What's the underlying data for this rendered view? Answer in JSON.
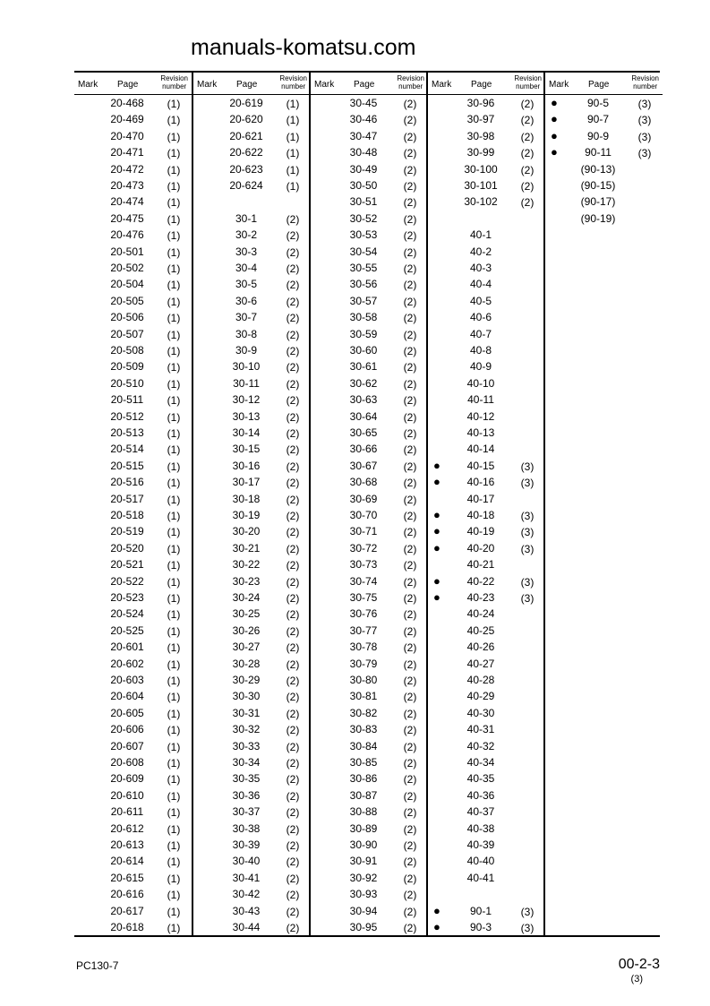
{
  "header": {
    "mark": "Mark",
    "page": "Page",
    "revision_line1": "Revision",
    "revision_line2": "number"
  },
  "columns": [
    [
      [
        "",
        "20-468",
        "(1)"
      ],
      [
        "",
        "20-469",
        "(1)"
      ],
      [
        "",
        "20-470",
        "(1)"
      ],
      [
        "",
        "20-471",
        "(1)"
      ],
      [
        "",
        "20-472",
        "(1)"
      ],
      [
        "",
        "20-473",
        "(1)"
      ],
      [
        "",
        "20-474",
        "(1)"
      ],
      [
        "",
        "20-475",
        "(1)"
      ],
      [
        "",
        "20-476",
        "(1)"
      ],
      [
        "",
        "20-501",
        "(1)"
      ],
      [
        "",
        "20-502",
        "(1)"
      ],
      [
        "",
        "20-504",
        "(1)"
      ],
      [
        "",
        "20-505",
        "(1)"
      ],
      [
        "",
        "20-506",
        "(1)"
      ],
      [
        "",
        "20-507",
        "(1)"
      ],
      [
        "",
        "20-508",
        "(1)"
      ],
      [
        "",
        "20-509",
        "(1)"
      ],
      [
        "",
        "20-510",
        "(1)"
      ],
      [
        "",
        "20-511",
        "(1)"
      ],
      [
        "",
        "20-512",
        "(1)"
      ],
      [
        "",
        "20-513",
        "(1)"
      ],
      [
        "",
        "20-514",
        "(1)"
      ],
      [
        "",
        "20-515",
        "(1)"
      ],
      [
        "",
        "20-516",
        "(1)"
      ],
      [
        "",
        "20-517",
        "(1)"
      ],
      [
        "",
        "20-518",
        "(1)"
      ],
      [
        "",
        "20-519",
        "(1)"
      ],
      [
        "",
        "20-520",
        "(1)"
      ],
      [
        "",
        "20-521",
        "(1)"
      ],
      [
        "",
        "20-522",
        "(1)"
      ],
      [
        "",
        "20-523",
        "(1)"
      ],
      [
        "",
        "20-524",
        "(1)"
      ],
      [
        "",
        "20-525",
        "(1)"
      ],
      [
        "",
        "20-601",
        "(1)"
      ],
      [
        "",
        "20-602",
        "(1)"
      ],
      [
        "",
        "20-603",
        "(1)"
      ],
      [
        "",
        "20-604",
        "(1)"
      ],
      [
        "",
        "20-605",
        "(1)"
      ],
      [
        "",
        "20-606",
        "(1)"
      ],
      [
        "",
        "20-607",
        "(1)"
      ],
      [
        "",
        "20-608",
        "(1)"
      ],
      [
        "",
        "20-609",
        "(1)"
      ],
      [
        "",
        "20-610",
        "(1)"
      ],
      [
        "",
        "20-611",
        "(1)"
      ],
      [
        "",
        "20-612",
        "(1)"
      ],
      [
        "",
        "20-613",
        "(1)"
      ],
      [
        "",
        "20-614",
        "(1)"
      ],
      [
        "",
        "20-615",
        "(1)"
      ],
      [
        "",
        "20-616",
        "(1)"
      ],
      [
        "",
        "20-617",
        "(1)"
      ],
      [
        "",
        "20-618",
        "(1)"
      ]
    ],
    [
      [
        "",
        "20-619",
        "(1)"
      ],
      [
        "",
        "20-620",
        "(1)"
      ],
      [
        "",
        "20-621",
        "(1)"
      ],
      [
        "",
        "20-622",
        "(1)"
      ],
      [
        "",
        "20-623",
        "(1)"
      ],
      [
        "",
        "20-624",
        "(1)"
      ],
      [
        "",
        "",
        ""
      ],
      [
        "",
        "30-1",
        "(2)"
      ],
      [
        "",
        "30-2",
        "(2)"
      ],
      [
        "",
        "30-3",
        "(2)"
      ],
      [
        "",
        "30-4",
        "(2)"
      ],
      [
        "",
        "30-5",
        "(2)"
      ],
      [
        "",
        "30-6",
        "(2)"
      ],
      [
        "",
        "30-7",
        "(2)"
      ],
      [
        "",
        "30-8",
        "(2)"
      ],
      [
        "",
        "30-9",
        "(2)"
      ],
      [
        "",
        "30-10",
        "(2)"
      ],
      [
        "",
        "30-11",
        "(2)"
      ],
      [
        "",
        "30-12",
        "(2)"
      ],
      [
        "",
        "30-13",
        "(2)"
      ],
      [
        "",
        "30-14",
        "(2)"
      ],
      [
        "",
        "30-15",
        "(2)"
      ],
      [
        "",
        "30-16",
        "(2)"
      ],
      [
        "",
        "30-17",
        "(2)"
      ],
      [
        "",
        "30-18",
        "(2)"
      ],
      [
        "",
        "30-19",
        "(2)"
      ],
      [
        "",
        "30-20",
        "(2)"
      ],
      [
        "",
        "30-21",
        "(2)"
      ],
      [
        "",
        "30-22",
        "(2)"
      ],
      [
        "",
        "30-23",
        "(2)"
      ],
      [
        "",
        "30-24",
        "(2)"
      ],
      [
        "",
        "30-25",
        "(2)"
      ],
      [
        "",
        "30-26",
        "(2)"
      ],
      [
        "",
        "30-27",
        "(2)"
      ],
      [
        "",
        "30-28",
        "(2)"
      ],
      [
        "",
        "30-29",
        "(2)"
      ],
      [
        "",
        "30-30",
        "(2)"
      ],
      [
        "",
        "30-31",
        "(2)"
      ],
      [
        "",
        "30-32",
        "(2)"
      ],
      [
        "",
        "30-33",
        "(2)"
      ],
      [
        "",
        "30-34",
        "(2)"
      ],
      [
        "",
        "30-35",
        "(2)"
      ],
      [
        "",
        "30-36",
        "(2)"
      ],
      [
        "",
        "30-37",
        "(2)"
      ],
      [
        "",
        "30-38",
        "(2)"
      ],
      [
        "",
        "30-39",
        "(2)"
      ],
      [
        "",
        "30-40",
        "(2)"
      ],
      [
        "",
        "30-41",
        "(2)"
      ],
      [
        "",
        "30-42",
        "(2)"
      ],
      [
        "",
        "30-43",
        "(2)"
      ],
      [
        "",
        "30-44",
        "(2)"
      ]
    ],
    [
      [
        "",
        "30-45",
        "(2)"
      ],
      [
        "",
        "30-46",
        "(2)"
      ],
      [
        "",
        "30-47",
        "(2)"
      ],
      [
        "",
        "30-48",
        "(2)"
      ],
      [
        "",
        "30-49",
        "(2)"
      ],
      [
        "",
        "30-50",
        "(2)"
      ],
      [
        "",
        "30-51",
        "(2)"
      ],
      [
        "",
        "30-52",
        "(2)"
      ],
      [
        "",
        "30-53",
        "(2)"
      ],
      [
        "",
        "30-54",
        "(2)"
      ],
      [
        "",
        "30-55",
        "(2)"
      ],
      [
        "",
        "30-56",
        "(2)"
      ],
      [
        "",
        "30-57",
        "(2)"
      ],
      [
        "",
        "30-58",
        "(2)"
      ],
      [
        "",
        "30-59",
        "(2)"
      ],
      [
        "",
        "30-60",
        "(2)"
      ],
      [
        "",
        "30-61",
        "(2)"
      ],
      [
        "",
        "30-62",
        "(2)"
      ],
      [
        "",
        "30-63",
        "(2)"
      ],
      [
        "",
        "30-64",
        "(2)"
      ],
      [
        "",
        "30-65",
        "(2)"
      ],
      [
        "",
        "30-66",
        "(2)"
      ],
      [
        "",
        "30-67",
        "(2)"
      ],
      [
        "",
        "30-68",
        "(2)"
      ],
      [
        "",
        "30-69",
        "(2)"
      ],
      [
        "",
        "30-70",
        "(2)"
      ],
      [
        "",
        "30-71",
        "(2)"
      ],
      [
        "",
        "30-72",
        "(2)"
      ],
      [
        "",
        "30-73",
        "(2)"
      ],
      [
        "",
        "30-74",
        "(2)"
      ],
      [
        "",
        "30-75",
        "(2)"
      ],
      [
        "",
        "30-76",
        "(2)"
      ],
      [
        "",
        "30-77",
        "(2)"
      ],
      [
        "",
        "30-78",
        "(2)"
      ],
      [
        "",
        "30-79",
        "(2)"
      ],
      [
        "",
        "30-80",
        "(2)"
      ],
      [
        "",
        "30-81",
        "(2)"
      ],
      [
        "",
        "30-82",
        "(2)"
      ],
      [
        "",
        "30-83",
        "(2)"
      ],
      [
        "",
        "30-84",
        "(2)"
      ],
      [
        "",
        "30-85",
        "(2)"
      ],
      [
        "",
        "30-86",
        "(2)"
      ],
      [
        "",
        "30-87",
        "(2)"
      ],
      [
        "",
        "30-88",
        "(2)"
      ],
      [
        "",
        "30-89",
        "(2)"
      ],
      [
        "",
        "30-90",
        "(2)"
      ],
      [
        "",
        "30-91",
        "(2)"
      ],
      [
        "",
        "30-92",
        "(2)"
      ],
      [
        "",
        "30-93",
        "(2)"
      ],
      [
        "",
        "30-94",
        "(2)"
      ],
      [
        "",
        "30-95",
        "(2)"
      ]
    ],
    [
      [
        "",
        "30-96",
        "(2)"
      ],
      [
        "",
        "30-97",
        "(2)"
      ],
      [
        "",
        "30-98",
        "(2)"
      ],
      [
        "",
        "30-99",
        "(2)"
      ],
      [
        "",
        "30-100",
        "(2)"
      ],
      [
        "",
        "30-101",
        "(2)"
      ],
      [
        "",
        "30-102",
        "(2)"
      ],
      [
        "",
        "",
        ""
      ],
      [
        "",
        "40-1",
        ""
      ],
      [
        "",
        "40-2",
        ""
      ],
      [
        "",
        "40-3",
        ""
      ],
      [
        "",
        "40-4",
        ""
      ],
      [
        "",
        "40-5",
        ""
      ],
      [
        "",
        "40-6",
        ""
      ],
      [
        "",
        "40-7",
        ""
      ],
      [
        "",
        "40-8",
        ""
      ],
      [
        "",
        "40-9",
        ""
      ],
      [
        "",
        "40-10",
        ""
      ],
      [
        "",
        "40-11",
        ""
      ],
      [
        "",
        "40-12",
        ""
      ],
      [
        "",
        "40-13",
        ""
      ],
      [
        "",
        "40-14",
        ""
      ],
      [
        "●",
        "40-15",
        "(3)"
      ],
      [
        "●",
        "40-16",
        "(3)"
      ],
      [
        "",
        "40-17",
        ""
      ],
      [
        "●",
        "40-18",
        "(3)"
      ],
      [
        "●",
        "40-19",
        "(3)"
      ],
      [
        "●",
        "40-20",
        "(3)"
      ],
      [
        "",
        "40-21",
        ""
      ],
      [
        "●",
        "40-22",
        "(3)"
      ],
      [
        "●",
        "40-23",
        "(3)"
      ],
      [
        "",
        "40-24",
        ""
      ],
      [
        "",
        "40-25",
        ""
      ],
      [
        "",
        "40-26",
        ""
      ],
      [
        "",
        "40-27",
        ""
      ],
      [
        "",
        "40-28",
        ""
      ],
      [
        "",
        "40-29",
        ""
      ],
      [
        "",
        "40-30",
        ""
      ],
      [
        "",
        "40-31",
        ""
      ],
      [
        "",
        "40-32",
        ""
      ],
      [
        "",
        "40-34",
        ""
      ],
      [
        "",
        "40-35",
        ""
      ],
      [
        "",
        "40-36",
        ""
      ],
      [
        "",
        "40-37",
        ""
      ],
      [
        "",
        "40-38",
        ""
      ],
      [
        "",
        "40-39",
        ""
      ],
      [
        "",
        "40-40",
        ""
      ],
      [
        "",
        "40-41",
        ""
      ],
      [
        "",
        "",
        ""
      ],
      [
        "●",
        "90-1",
        "(3)"
      ],
      [
        "●",
        "90-3",
        "(3)"
      ]
    ],
    [
      [
        "●",
        "90-5",
        "(3)"
      ],
      [
        "●",
        "90-7",
        "(3)"
      ],
      [
        "●",
        "90-9",
        "(3)"
      ],
      [
        "●",
        "90-11",
        "(3)"
      ],
      [
        "",
        "(90-13)",
        ""
      ],
      [
        "",
        "(90-15)",
        ""
      ],
      [
        "",
        "(90-17)",
        ""
      ],
      [
        "",
        "(90-19)",
        ""
      ]
    ]
  ],
  "watermark": "manuals-komatsu.com",
  "footer": {
    "model": "PC130-7",
    "page_number": "00-2-3",
    "page_revision": "(3)"
  }
}
